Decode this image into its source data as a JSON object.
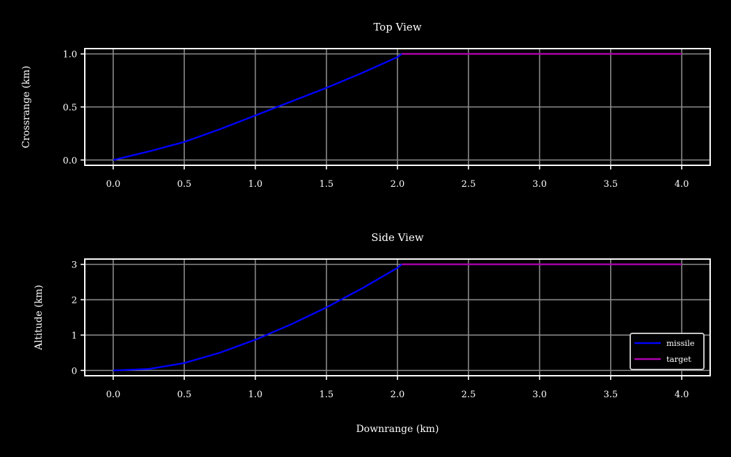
{
  "colors": {
    "background": "#000000",
    "axis": "#ffffff",
    "grid": "#8c8c8c",
    "missile": "#0000ff",
    "target": "#b000b0"
  },
  "chart_data": [
    {
      "type": "line",
      "title": "Top View",
      "xlabel": "",
      "ylabel": "Crossrange (km)",
      "xlim": [
        -0.2,
        4.2
      ],
      "ylim": [
        -0.05,
        1.05
      ],
      "xticks": [
        0.0,
        0.5,
        1.0,
        1.5,
        2.0,
        2.5,
        3.0,
        3.5,
        4.0
      ],
      "xtick_labels": [
        "0.0",
        "0.5",
        "1.0",
        "1.5",
        "2.0",
        "2.5",
        "3.0",
        "3.5",
        "4.0"
      ],
      "yticks": [
        0.0,
        0.5,
        1.0
      ],
      "ytick_labels": [
        "0.0",
        "0.5",
        "1.0"
      ],
      "grid": true,
      "series": [
        {
          "name": "missile",
          "color": "#0000ff",
          "x": [
            0.0,
            0.25,
            0.5,
            0.75,
            1.0,
            1.25,
            1.5,
            1.75,
            2.0,
            2.03
          ],
          "y": [
            0.0,
            0.08,
            0.17,
            0.29,
            0.42,
            0.55,
            0.68,
            0.82,
            0.97,
            1.0
          ]
        },
        {
          "name": "target",
          "color": "#b000b0",
          "x": [
            2.03,
            4.0
          ],
          "y": [
            1.0,
            1.0
          ]
        }
      ]
    },
    {
      "type": "line",
      "title": "Side View",
      "xlabel": "Downrange (km)",
      "ylabel": "Altitude (km)",
      "xlim": [
        -0.2,
        4.2
      ],
      "ylim": [
        -0.15,
        3.15
      ],
      "xticks": [
        0.0,
        0.5,
        1.0,
        1.5,
        2.0,
        2.5,
        3.0,
        3.5,
        4.0
      ],
      "xtick_labels": [
        "0.0",
        "0.5",
        "1.0",
        "1.5",
        "2.0",
        "2.5",
        "3.0",
        "3.5",
        "4.0"
      ],
      "yticks": [
        0,
        1,
        2,
        3
      ],
      "ytick_labels": [
        "0",
        "1",
        "2",
        "3"
      ],
      "grid": true,
      "legend": {
        "placement": "lower-right",
        "entries": [
          "missile",
          "target"
        ]
      },
      "series": [
        {
          "name": "missile",
          "color": "#0000ff",
          "x": [
            0.0,
            0.25,
            0.5,
            0.75,
            1.0,
            1.25,
            1.5,
            1.75,
            2.0,
            2.03
          ],
          "y": [
            0.0,
            0.04,
            0.21,
            0.5,
            0.87,
            1.3,
            1.78,
            2.32,
            2.9,
            3.0
          ]
        },
        {
          "name": "target",
          "color": "#b000b0",
          "x": [
            2.03,
            4.0
          ],
          "y": [
            3.0,
            3.0
          ]
        }
      ]
    }
  ]
}
